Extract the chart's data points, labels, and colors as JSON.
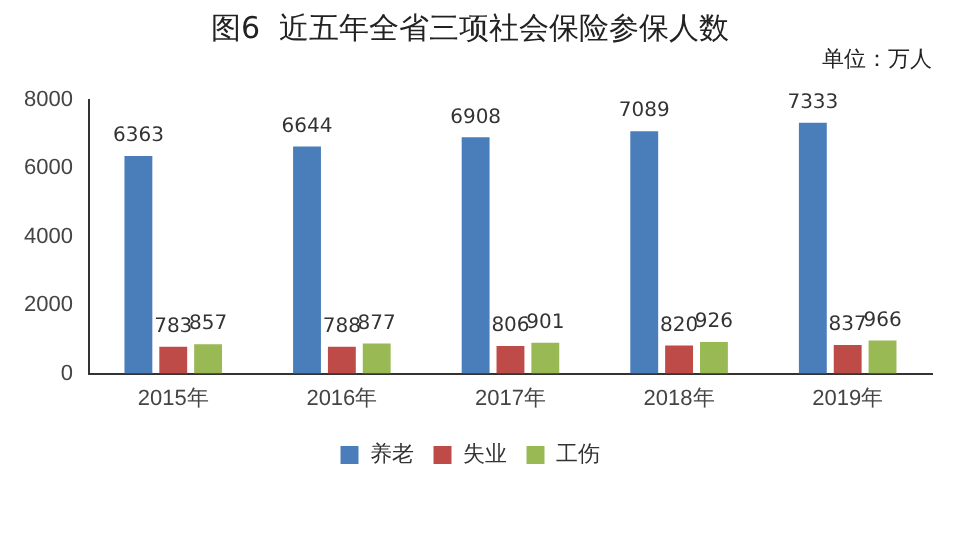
{
  "chart_data": {
    "type": "bar",
    "title": "图6  近五年全省三项社会保险参保人数",
    "annotations": [
      "单位：万人"
    ],
    "categories": [
      "2015年",
      "2016年",
      "2017年",
      "2018年",
      "2019年"
    ],
    "series": [
      {
        "name": "养老",
        "color": "#4a7ebb",
        "values": [
          6363,
          6644,
          6908,
          7089,
          7333
        ]
      },
      {
        "name": "失业",
        "color": "#be4b48",
        "values": [
          783,
          788,
          806,
          820,
          837
        ]
      },
      {
        "name": "工伤",
        "color": "#98b954",
        "values": [
          857,
          877,
          901,
          926,
          966
        ]
      }
    ],
    "ylim": [
      0,
      8000
    ],
    "yticks": [
      0,
      2000,
      4000,
      6000,
      8000
    ],
    "grid": false,
    "legend": "bottom",
    "data_labels": true
  }
}
